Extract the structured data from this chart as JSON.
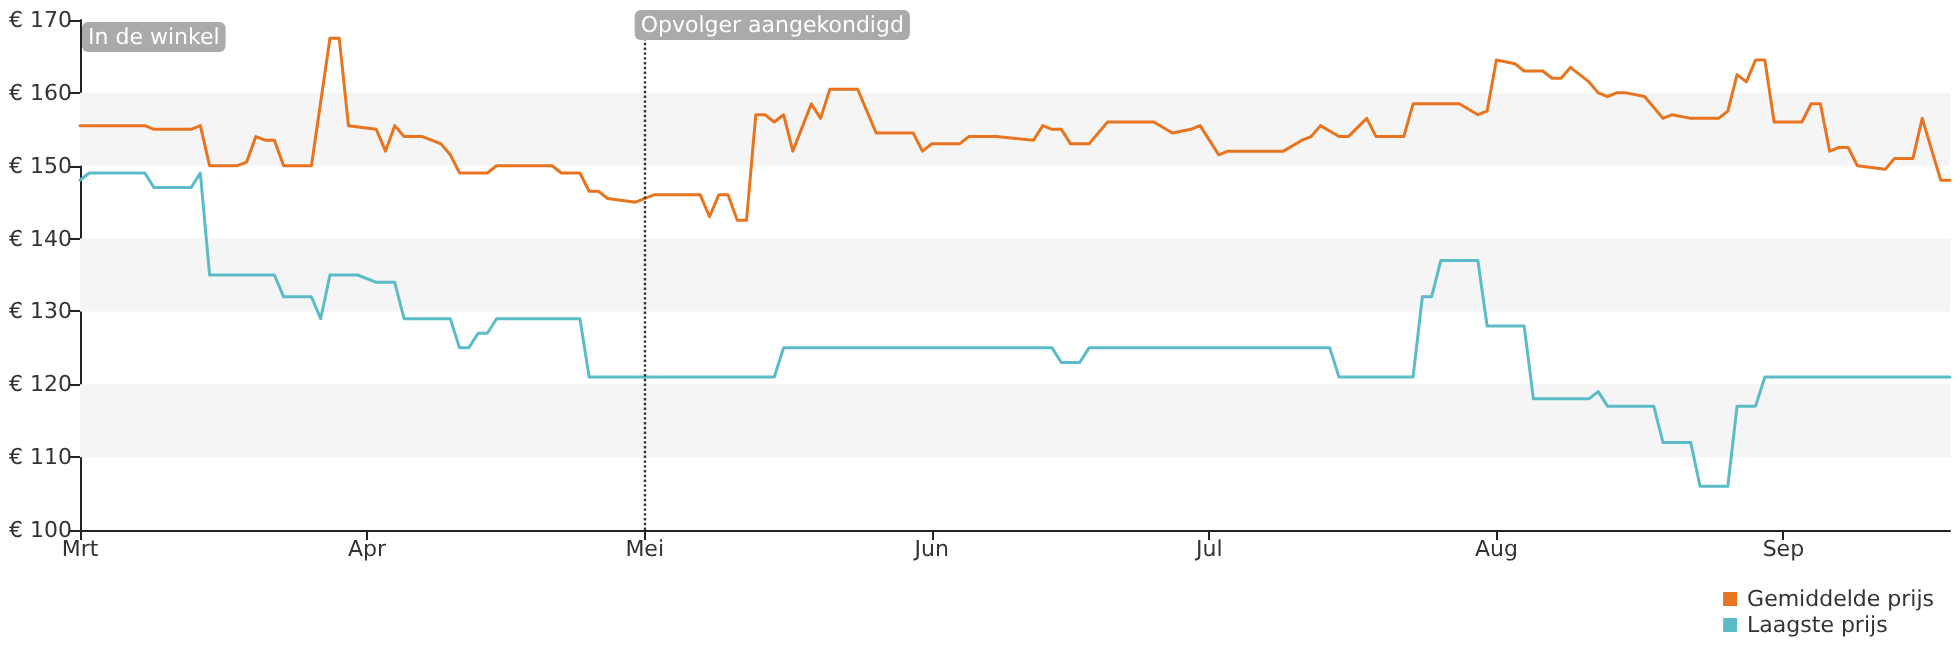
{
  "chart_data": {
    "type": "line",
    "xlim": [
      "--03-01",
      "--09-19"
    ],
    "xticks": [
      {
        "value": "--03-01",
        "label": "Mrt"
      },
      {
        "value": "--04-01",
        "label": "Apr"
      },
      {
        "value": "--05-01",
        "label": "Mei"
      },
      {
        "value": "--06-01",
        "label": "Jun"
      },
      {
        "value": "--07-01",
        "label": "Jul"
      },
      {
        "value": "--08-01",
        "label": "Aug"
      },
      {
        "value": "--09-01",
        "label": "Sep"
      }
    ],
    "ylim": [
      100,
      170
    ],
    "yticks": [
      {
        "value": 100,
        "label": "€ 100"
      },
      {
        "value": 110,
        "label": "€ 110"
      },
      {
        "value": 120,
        "label": "€ 120"
      },
      {
        "value": 130,
        "label": "€ 130"
      },
      {
        "value": 140,
        "label": "€ 140"
      },
      {
        "value": 150,
        "label": "€ 150"
      },
      {
        "value": 160,
        "label": "€ 160"
      },
      {
        "value": 170,
        "label": "€ 170"
      }
    ],
    "legend": "bottom right",
    "marker": "none",
    "line_style": "solid",
    "annotations": [
      "In de winkel"
    ],
    "ref_lines": [
      {
        "axis": "x",
        "value": "--05-01",
        "label": "Opvolger aangekondigd",
        "line_style": "dotted"
      }
    ],
    "bands": [
      {
        "axis": "y",
        "from": 110,
        "to": 120,
        "color": "#f5f5f5"
      },
      {
        "axis": "y",
        "from": 130,
        "to": 140,
        "color": "#f5f5f5"
      },
      {
        "axis": "y",
        "from": 150,
        "to": 160,
        "color": "#f5f5f5"
      }
    ],
    "series": [
      {
        "name": "Gemiddelde prijs",
        "color": "#e8741f",
        "x": [
          "--03-01",
          "--03-08",
          "--03-09",
          "--03-13",
          "--03-14",
          "--03-15",
          "--03-18",
          "--03-19",
          "--03-20",
          "--03-21",
          "--03-22",
          "--03-23",
          "--03-26",
          "--03-28",
          "--03-29",
          "--03-30",
          "--04-02",
          "--04-03",
          "--04-04",
          "--04-05",
          "--04-07",
          "--04-09",
          "--04-10",
          "--04-11",
          "--04-14",
          "--04-15",
          "--04-21",
          "--04-22",
          "--04-24",
          "--04-25",
          "--04-26",
          "--04-27",
          "--04-30",
          "--05-02",
          "--05-07",
          "--05-08",
          "--05-09",
          "--05-10",
          "--05-11",
          "--05-12",
          "--05-13",
          "--05-14",
          "--05-15",
          "--05-16",
          "--05-17",
          "--05-19",
          "--05-20",
          "--05-21",
          "--05-24",
          "--05-26",
          "--05-30",
          "--05-31",
          "--06-01",
          "--06-04",
          "--06-05",
          "--06-08",
          "--06-12",
          "--06-13",
          "--06-14",
          "--06-15",
          "--06-16",
          "--06-18",
          "--06-20",
          "--06-25",
          "--06-27",
          "--06-29",
          "--06-30",
          "--07-02",
          "--07-03",
          "--07-09",
          "--07-11",
          "--07-12",
          "--07-13",
          "--07-15",
          "--07-16",
          "--07-18",
          "--07-19",
          "--07-22",
          "--07-23",
          "--07-28",
          "--07-30",
          "--07-31",
          "--08-01",
          "--08-03",
          "--08-04",
          "--08-06",
          "--08-07",
          "--08-08",
          "--08-09",
          "--08-11",
          "--08-12",
          "--08-13",
          "--08-14",
          "--08-15",
          "--08-17",
          "--08-19",
          "--08-20",
          "--08-22",
          "--08-25",
          "--08-26",
          "--08-27",
          "--08-28",
          "--08-29",
          "--08-30",
          "--08-31",
          "--09-03",
          "--09-04",
          "--09-05",
          "--09-06",
          "--09-07",
          "--09-08",
          "--09-09",
          "--09-12",
          "--09-13",
          "--09-15",
          "--09-16",
          "--09-18",
          "--09-19"
        ],
        "values": [
          155.5,
          155.5,
          155,
          155,
          155.5,
          150,
          150,
          150.5,
          154,
          153.5,
          153.5,
          150,
          150,
          167.5,
          167.5,
          155.5,
          155,
          152,
          155.5,
          154,
          154,
          153,
          151.5,
          149,
          149,
          150,
          150,
          149,
          149,
          146.5,
          146.5,
          145.5,
          145,
          146,
          146,
          143,
          146,
          146,
          142.5,
          142.5,
          157,
          157,
          156,
          157,
          152,
          158.5,
          156.5,
          160.5,
          160.5,
          154.5,
          154.5,
          152,
          153,
          153,
          154,
          154,
          153.5,
          155.5,
          155,
          155,
          153,
          153,
          156,
          156,
          154.5,
          155,
          155.5,
          151.5,
          152,
          152,
          153.5,
          154,
          155.5,
          154,
          154,
          156.5,
          154,
          154,
          158.5,
          158.5,
          157,
          157.5,
          164.5,
          164,
          163,
          163,
          162,
          162,
          163.5,
          161.5,
          160,
          159.5,
          160,
          160,
          159.5,
          156.5,
          157,
          156.5,
          156.5,
          157.5,
          162.5,
          161.5,
          164.5,
          164.5,
          156,
          156,
          158.5,
          158.5,
          152,
          152.5,
          152.5,
          150,
          149.5,
          151,
          151,
          156.5,
          148,
          148
        ]
      },
      {
        "name": "Laagste prijs",
        "color": "#5bbcc8",
        "x": [
          "--03-01",
          "--03-02",
          "--03-08",
          "--03-09",
          "--03-13",
          "--03-14",
          "--03-15",
          "--03-22",
          "--03-23",
          "--03-26",
          "--03-27",
          "--03-28",
          "--03-31",
          "--04-02",
          "--04-04",
          "--04-05",
          "--04-10",
          "--04-11",
          "--04-12",
          "--04-13",
          "--04-14",
          "--04-15",
          "--04-24",
          "--04-25",
          "--05-15",
          "--05-16",
          "--06-14",
          "--06-15",
          "--06-17",
          "--06-18",
          "--07-14",
          "--07-15",
          "--07-23",
          "--07-24",
          "--07-25",
          "--07-26",
          "--07-30",
          "--07-31",
          "--08-04",
          "--08-05",
          "--08-11",
          "--08-12",
          "--08-13",
          "--08-18",
          "--08-19",
          "--08-22",
          "--08-23",
          "--08-26",
          "--08-27",
          "--08-29",
          "--08-30",
          "--09-19"
        ],
        "values": [
          148,
          149,
          149,
          147,
          147,
          149,
          135,
          135,
          132,
          132,
          129,
          135,
          135,
          134,
          134,
          129,
          129,
          125,
          125,
          127,
          127,
          129,
          129,
          121,
          121,
          125,
          125,
          123,
          123,
          125,
          125,
          121,
          121,
          132,
          132,
          137,
          137,
          128,
          128,
          118,
          118,
          119,
          117,
          117,
          112,
          112,
          106,
          106,
          117,
          117,
          121,
          121
        ]
      }
    ]
  }
}
